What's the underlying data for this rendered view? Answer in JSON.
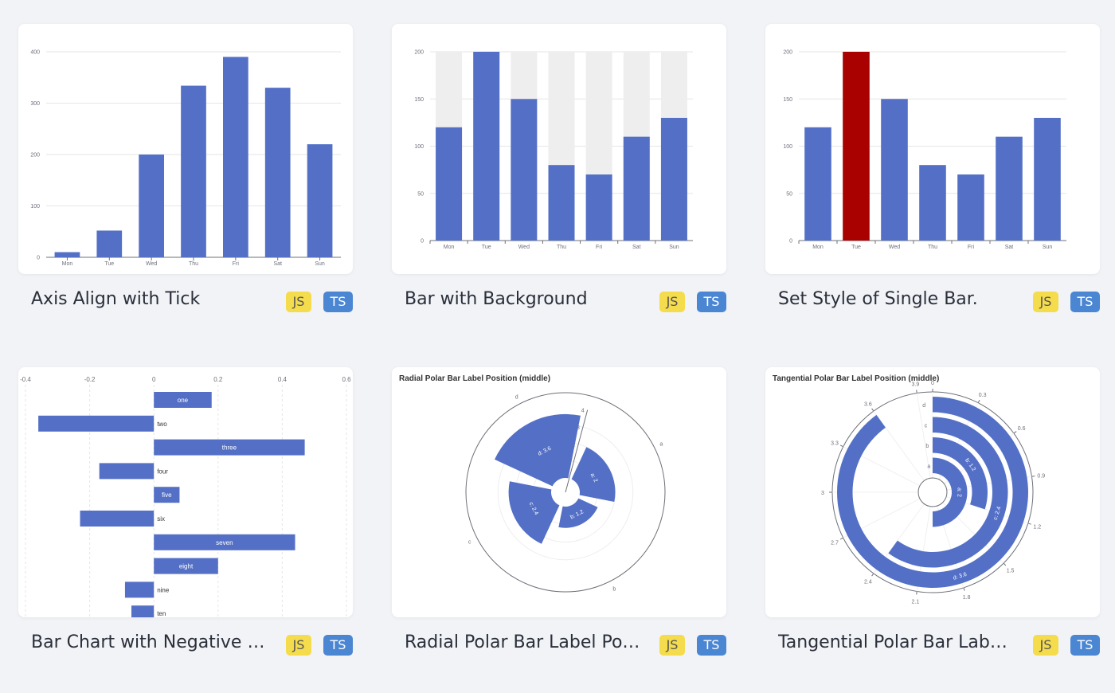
{
  "colors": {
    "bar": "#5470c6",
    "highlight": "#a90000",
    "background_bar": "#eeeeee",
    "js_badge": "#f4dc4d",
    "ts_badge": "#4b86d2"
  },
  "cards": [
    {
      "title": "Axis Align with Tick",
      "js": "JS",
      "ts": "TS"
    },
    {
      "title": "Bar with Background",
      "js": "JS",
      "ts": "TS"
    },
    {
      "title": "Set Style of Single Bar.",
      "js": "JS",
      "ts": "TS"
    },
    {
      "title": "Bar Chart with Negative V...",
      "js": "JS",
      "ts": "TS"
    },
    {
      "title": "Radial Polar Bar Label Pos...",
      "js": "JS",
      "ts": "TS"
    },
    {
      "title": "Tangential Polar Bar Label...",
      "js": "JS",
      "ts": "TS"
    }
  ],
  "chart_data": [
    {
      "type": "bar",
      "categories": [
        "Mon",
        "Tue",
        "Wed",
        "Thu",
        "Fri",
        "Sat",
        "Sun"
      ],
      "values": [
        10,
        52,
        200,
        334,
        390,
        330,
        220
      ],
      "yticks": [
        "0",
        "100",
        "200",
        "300",
        "400"
      ],
      "ylim": [
        0,
        400
      ]
    },
    {
      "type": "bar",
      "categories": [
        "Mon",
        "Tue",
        "Wed",
        "Thu",
        "Fri",
        "Sat",
        "Sun"
      ],
      "values": [
        120,
        200,
        150,
        80,
        70,
        110,
        130
      ],
      "background": 200,
      "yticks": [
        "0",
        "50",
        "100",
        "150",
        "200"
      ],
      "ylim": [
        0,
        200
      ]
    },
    {
      "type": "bar",
      "categories": [
        "Mon",
        "Tue",
        "Wed",
        "Thu",
        "Fri",
        "Sat",
        "Sun"
      ],
      "values": [
        120,
        200,
        150,
        80,
        70,
        110,
        130
      ],
      "highlight_index": 1,
      "yticks": [
        "0",
        "50",
        "100",
        "150",
        "200"
      ],
      "ylim": [
        0,
        200
      ]
    },
    {
      "type": "bar",
      "orientation": "horizontal",
      "categories": [
        "one",
        "two",
        "three",
        "four",
        "five",
        "six",
        "seven",
        "eight",
        "nine",
        "ten"
      ],
      "values": [
        0.18,
        -0.36,
        0.47,
        -0.17,
        0.08,
        -0.23,
        0.44,
        0.2,
        -0.09,
        -0.07
      ],
      "xticks": [
        "-0.4",
        "-0.2",
        "0",
        "0.2",
        "0.4",
        "0.6"
      ],
      "xlim": [
        -0.4,
        0.6
      ]
    },
    {
      "type": "bar",
      "polar": "radial",
      "title": "Radial Polar Bar Label Position (middle)",
      "categories": [
        "a",
        "b",
        "c",
        "d"
      ],
      "values": [
        2,
        1.2,
        2.4,
        3.6
      ],
      "labels": [
        "a: 2",
        "b: 1.2",
        "c: 2.4",
        "d: 3.6"
      ],
      "rticks": [
        "1",
        "2",
        "3",
        "4"
      ],
      "rlim": [
        0,
        4
      ]
    },
    {
      "type": "bar",
      "polar": "tangential",
      "title": "Tangential Polar Bar Label Position (middle)",
      "categories": [
        "a",
        "b",
        "c",
        "d"
      ],
      "values": [
        2,
        1.2,
        2.4,
        3.6
      ],
      "labels": [
        "a: 2",
        "b: 1.2",
        "c: 2.4",
        "d: 3.6"
      ],
      "aticks": [
        "0",
        "0.3",
        "0.6",
        "0.9",
        "1.2",
        "1.5",
        "1.8",
        "2.1",
        "2.4",
        "2.7",
        "3",
        "3.3",
        "3.6",
        "3.9"
      ],
      "alim": [
        0,
        4
      ]
    }
  ]
}
